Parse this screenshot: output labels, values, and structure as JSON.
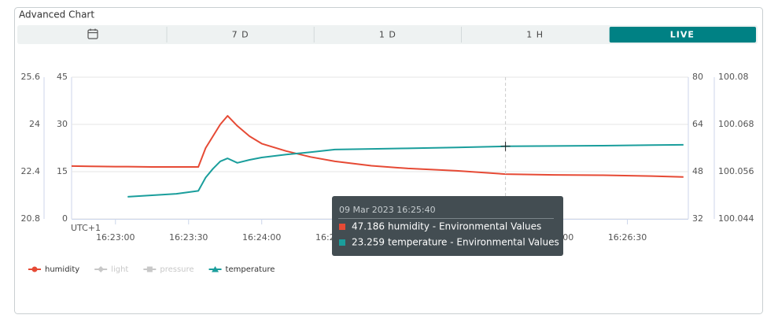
{
  "widget": {
    "title": "Advanced Chart",
    "tabs": [
      "7 D",
      "1 D",
      "1 H",
      "LIVE"
    ],
    "active_tab": 3
  },
  "chart_data": {
    "type": "line",
    "timezone_label": "UTC+1",
    "x": [
      "16:22:42",
      "16:22:50",
      "16:23:00",
      "16:23:05",
      "16:23:15",
      "16:23:25",
      "16:23:34",
      "16:23:37",
      "16:23:40",
      "16:23:43",
      "16:23:46",
      "16:23:50",
      "16:23:55",
      "16:24:00",
      "16:24:10",
      "16:24:20",
      "16:24:30",
      "16:24:45",
      "16:25:00",
      "16:25:20",
      "16:25:40",
      "16:26:00",
      "16:26:20",
      "16:26:40",
      "16:26:53"
    ],
    "xlim": [
      "16:22:42",
      "16:26:55"
    ],
    "xticks": [
      "16:23:00",
      "16:23:30",
      "16:24:00",
      "16:24:30",
      "16:25:00",
      "16:25:30",
      "16:26:00",
      "16:26:30"
    ],
    "y_axes": [
      {
        "position": "left-outer",
        "lim": [
          20.8,
          25.6
        ],
        "ticks": [
          20.8,
          22.4,
          24,
          25.6
        ]
      },
      {
        "position": "left-inner",
        "lim": [
          0,
          45
        ],
        "ticks": [
          0,
          15,
          30,
          45
        ]
      },
      {
        "position": "right-inner",
        "lim": [
          32,
          80
        ],
        "ticks": [
          32,
          48,
          64,
          80
        ]
      },
      {
        "position": "right-outer",
        "lim": [
          100.044,
          100.08
        ],
        "ticks": [
          100.044,
          100.056,
          100.068,
          100.08
        ]
      }
    ],
    "grid": true,
    "series": [
      {
        "name": "humidity",
        "color": "#e64a35",
        "marker": "circle",
        "visible": true,
        "axis": 2,
        "values": [
          49.9,
          49.8,
          49.7,
          49.7,
          49.6,
          49.6,
          49.6,
          56,
          60,
          64,
          66.9,
          63.5,
          60,
          57.5,
          55,
          53,
          51.5,
          50,
          49.1,
          48.3,
          47.186,
          46.9,
          46.8,
          46.5,
          46.2
        ]
      },
      {
        "name": "light",
        "color": "#c8c8c8",
        "marker": "diamond",
        "visible": false,
        "axis": 1,
        "values": [
          null,
          null,
          null,
          null,
          null,
          null,
          null,
          null,
          null,
          null,
          null,
          null,
          null,
          null,
          null,
          null,
          null,
          null,
          null,
          null,
          null,
          null,
          null,
          null,
          null
        ]
      },
      {
        "name": "pressure",
        "color": "#c8c8c8",
        "marker": "square",
        "visible": false,
        "axis": 3,
        "values": [
          null,
          null,
          null,
          null,
          null,
          null,
          null,
          null,
          null,
          null,
          null,
          null,
          null,
          null,
          null,
          null,
          null,
          null,
          null,
          null,
          null,
          null,
          null,
          null,
          null
        ]
      },
      {
        "name": "temperature",
        "color": "#1a9e9c",
        "marker": "triangle",
        "visible": true,
        "axis": 0,
        "values": [
          null,
          null,
          null,
          21.55,
          21.6,
          21.65,
          21.75,
          22.2,
          22.5,
          22.75,
          22.85,
          22.7,
          22.8,
          22.88,
          22.98,
          23.06,
          23.15,
          23.17,
          23.19,
          23.22,
          23.259,
          23.27,
          23.28,
          23.3,
          23.31
        ]
      }
    ]
  },
  "tooltip": {
    "title": "09 Mar 2023 16:25:40",
    "index": 20,
    "rows": [
      {
        "series": 0,
        "label": "humidity - Environmental Values"
      },
      {
        "series": 3,
        "label": "temperature - Environmental Values"
      }
    ]
  }
}
